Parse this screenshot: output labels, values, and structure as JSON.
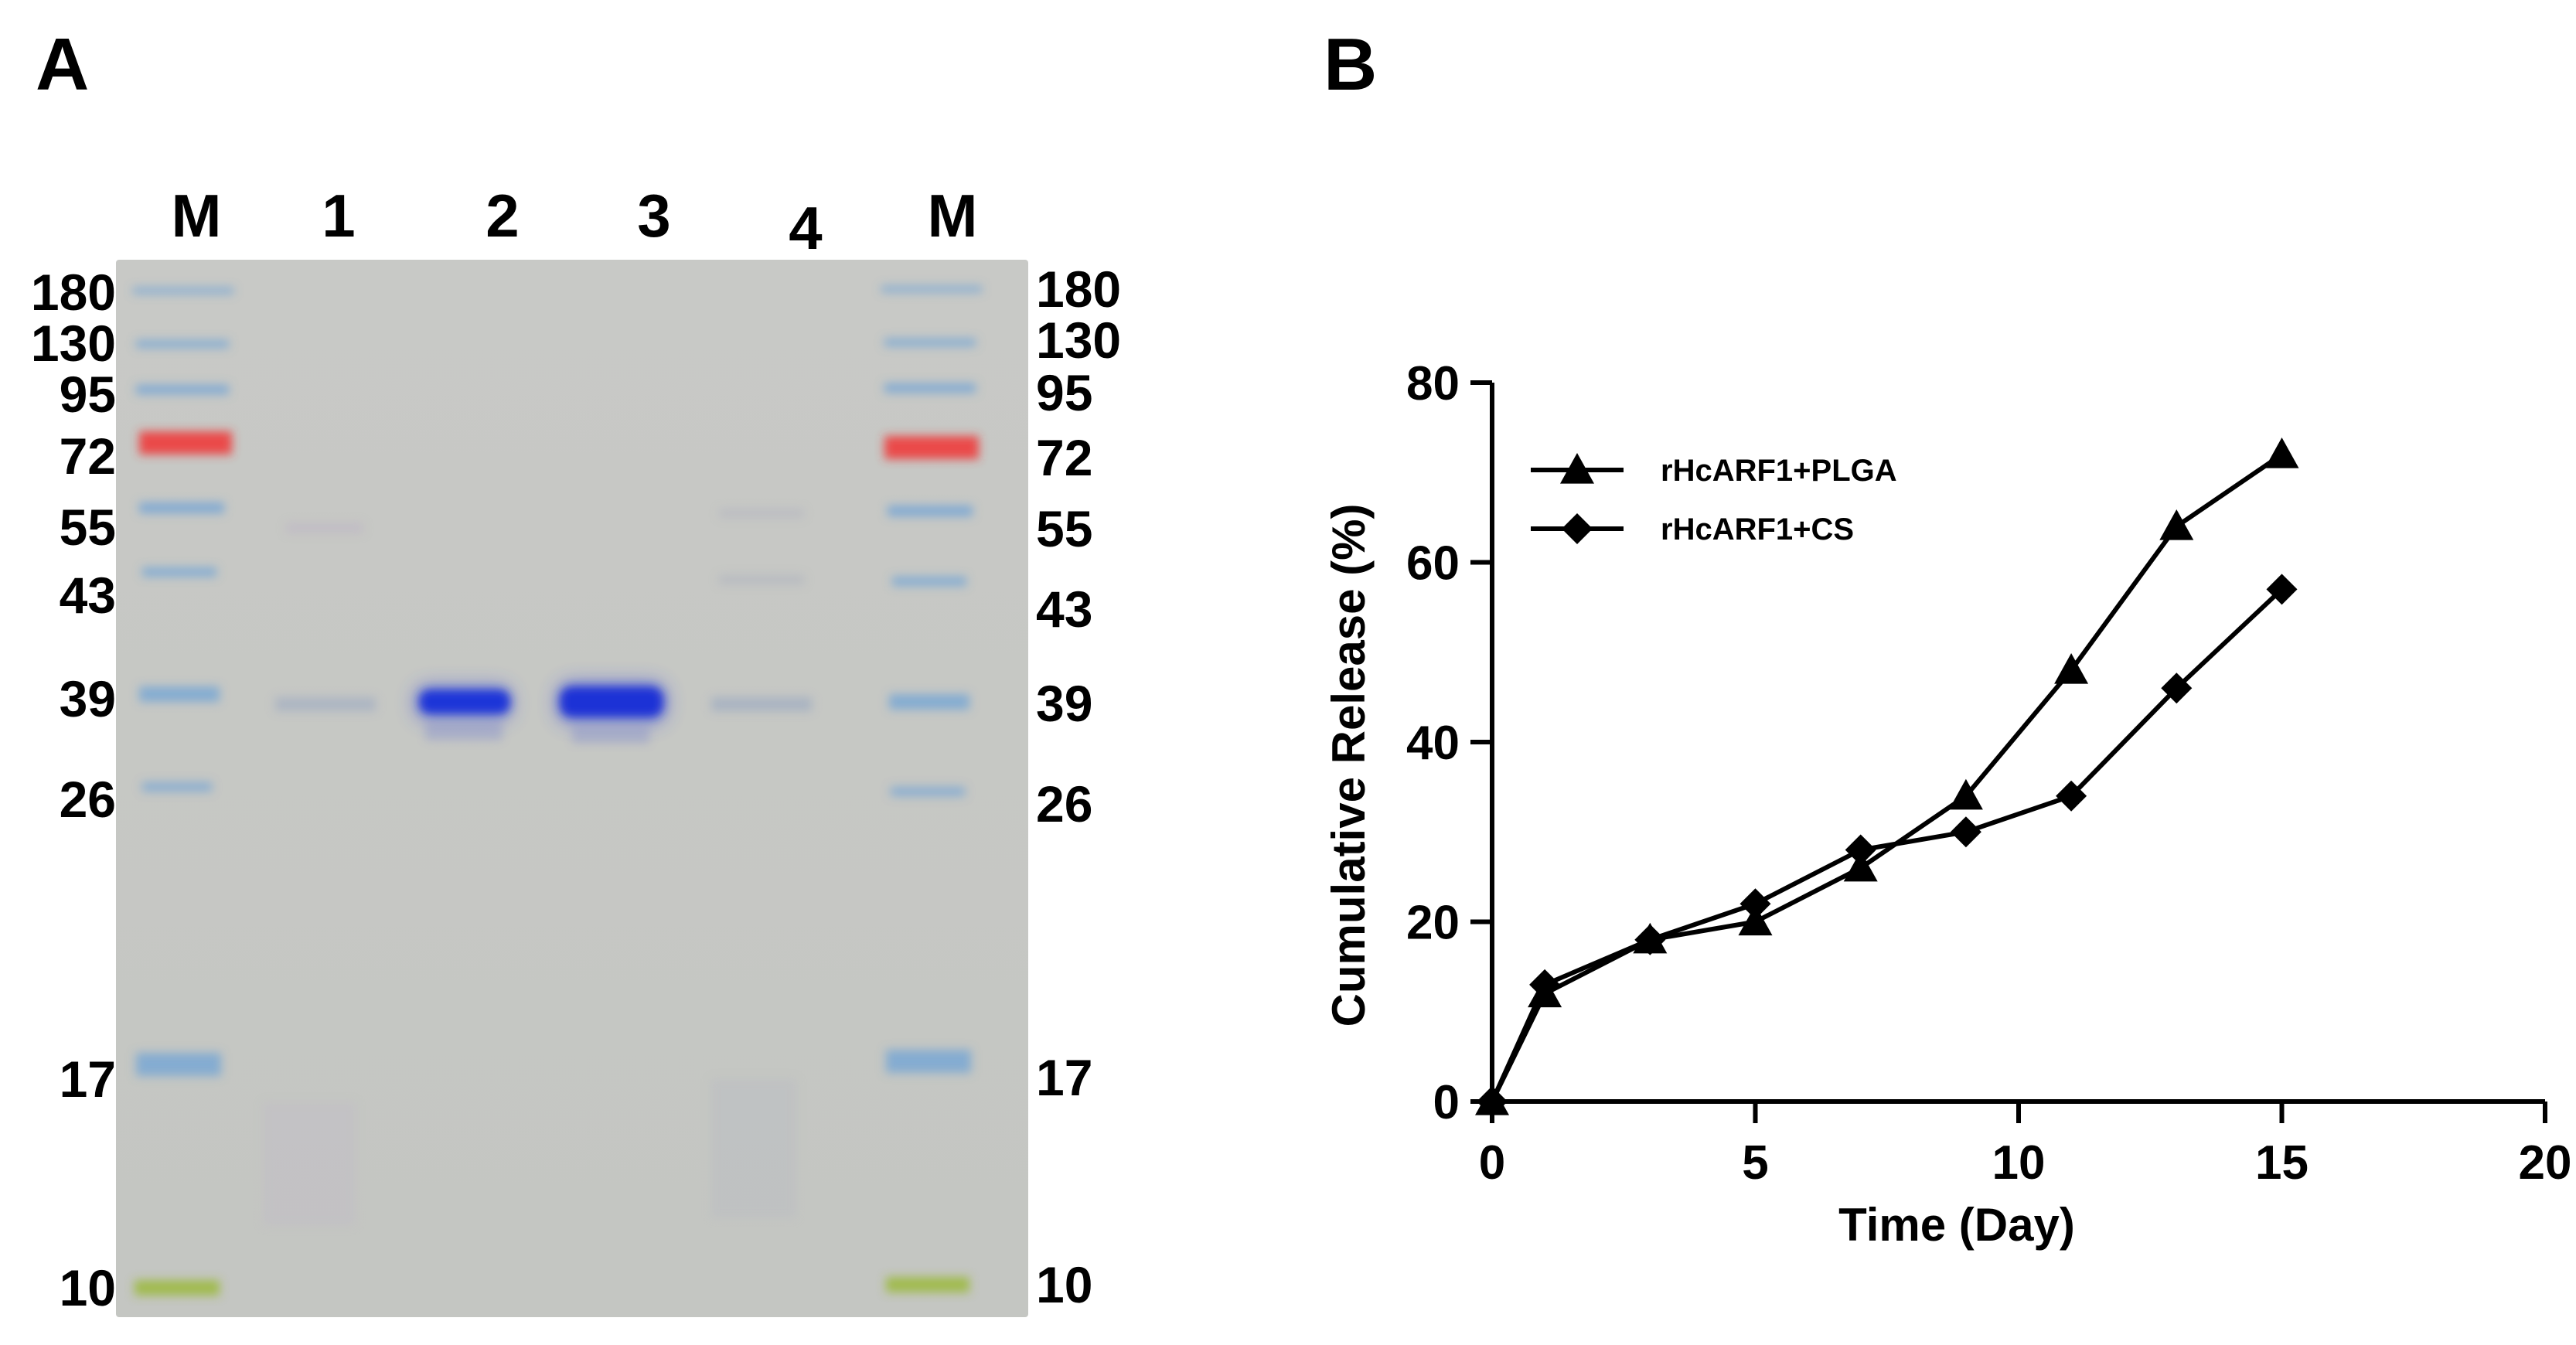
{
  "panels": {
    "a_label": "A",
    "b_label": "B"
  },
  "gel": {
    "lanes": [
      "M",
      "1",
      "2",
      "3",
      "4",
      "M"
    ],
    "markers_left": [
      "180",
      "130",
      "95",
      "72",
      "55",
      "43",
      "39",
      "26",
      "17",
      "10"
    ],
    "markers_right": [
      "180",
      "130",
      "95",
      "72",
      "55",
      "43",
      "39",
      "26",
      "17",
      "10"
    ],
    "colors": {
      "background": "#c5c7c4",
      "marker_blue": "#5b9bd5",
      "marker_red": "#ee3b3b",
      "marker_green": "#9ab83a",
      "protein_band": "#1f35d8"
    }
  },
  "chart_data": {
    "type": "line",
    "title": "",
    "xlabel": "Time (Day)",
    "ylabel": "Cumulative Release (%)",
    "xlim": [
      0,
      20
    ],
    "ylim": [
      0,
      80
    ],
    "xticks": [
      "0",
      "5",
      "10",
      "15",
      "20"
    ],
    "yticks": [
      "0",
      "20",
      "40",
      "60",
      "80"
    ],
    "grid": false,
    "legend": "top-left",
    "x": [
      0,
      1,
      3,
      5,
      7,
      9,
      11,
      13,
      15
    ],
    "series": [
      {
        "name": "rHcARF1+PLGA",
        "marker": "triangle",
        "values": [
          0,
          12,
          18,
          20,
          26,
          34,
          48,
          64,
          72
        ]
      },
      {
        "name": "rHcARF1+CS",
        "marker": "diamond",
        "values": [
          0,
          13,
          18,
          22,
          28,
          30,
          34,
          46,
          57
        ]
      }
    ],
    "colors": {
      "line": "#000000",
      "marker": "#000000"
    }
  }
}
